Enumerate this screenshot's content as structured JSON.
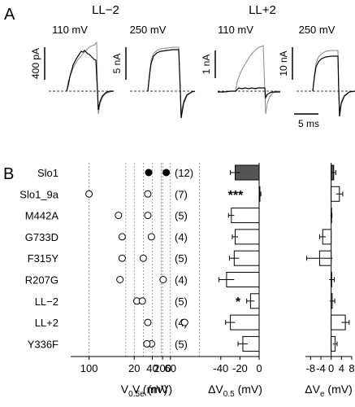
{
  "panel_a": {
    "label": "A",
    "groups": [
      {
        "title": "LL−2",
        "subplots": [
          {
            "voltage": "110 mV",
            "scale": "400 pA"
          },
          {
            "voltage": "250 mV",
            "scale": "5 nA"
          }
        ]
      },
      {
        "title": "LL+2",
        "subplots": [
          {
            "voltage": "110 mV",
            "scale": "1 nA"
          },
          {
            "voltage": "250 mV",
            "scale": "10 nA"
          }
        ]
      }
    ],
    "time_scale": "5 ms"
  },
  "panel_b": {
    "label": "B",
    "rows": [
      "Slo1",
      "Slo1_9a",
      "M442A",
      "G733D",
      "F315Y",
      "R207G",
      "LL−2",
      "LL+2",
      "Y336F"
    ],
    "n_labels": [
      "(12)",
      "(7)",
      "(5)",
      "(4)",
      "(5)",
      "(4)",
      "(5)",
      "(4)",
      "(5)"
    ],
    "annotations": [
      "***",
      "*"
    ]
  },
  "chart_data": [
    {
      "type": "scatter",
      "xlabel": "V0.5 (mV)",
      "xlabel_parts": [
        "V",
        "0.5",
        " (mV)"
      ],
      "xlim": [
        75,
        275
      ],
      "xticks": [
        100,
        200
      ],
      "xtick_labels": [
        "100",
        "200"
      ],
      "grid_x": [
        100,
        150,
        200,
        250
      ],
      "grid": true,
      "categories": [
        "Slo1",
        "Slo1_9a",
        "M442A",
        "G733D",
        "F315Y",
        "R207G",
        "LL−2",
        "LL+2",
        "Y336F"
      ],
      "values": [
        205,
        100,
        140,
        145,
        145,
        142,
        165,
        230,
        185
      ],
      "filled": [
        true,
        false,
        false,
        false,
        false,
        false,
        false,
        false,
        false
      ]
    },
    {
      "type": "scatter",
      "xlabel": "Ve (mV)",
      "xlabel_parts": [
        "V",
        "e",
        " (mV)"
      ],
      "xlim": [
        18,
        62
      ],
      "xticks": [
        20,
        40,
        60
      ],
      "xtick_labels": [
        "20",
        "40",
        "60"
      ],
      "grid_x": [
        20,
        30,
        40,
        50,
        60
      ],
      "grid": true,
      "categories": [
        "Slo1",
        "Slo1_9a",
        "M442A",
        "G733D",
        "F315Y",
        "R207G",
        "LL−2",
        "LL+2",
        "Y336F"
      ],
      "values": [
        36,
        35,
        35,
        39,
        30,
        52,
        29,
        35,
        34
      ],
      "filled": [
        true,
        false,
        false,
        false,
        false,
        false,
        false,
        false,
        false
      ]
    },
    {
      "type": "bar",
      "orientation": "horizontal",
      "xlabel": "ΔV0.5 (mV)",
      "xlabel_parts": [
        "ΔV",
        "0.5",
        " (mV)"
      ],
      "xlim": [
        -50,
        0
      ],
      "xticks": [
        -40,
        -20,
        0
      ],
      "xtick_labels": [
        "-40",
        "-20",
        "0"
      ],
      "categories": [
        "Slo1",
        "Slo1_9a",
        "M442A",
        "G733D",
        "F315Y",
        "R207G",
        "LL−2",
        "LL+2",
        "Y336F"
      ],
      "values": [
        -25,
        0.8,
        -29,
        -25,
        -26,
        -34,
        -9,
        -30,
        -17
      ],
      "errors": [
        5,
        1,
        3,
        3,
        5,
        8,
        4,
        5,
        5
      ],
      "filled": [
        true,
        false,
        false,
        false,
        false,
        false,
        false,
        false,
        false
      ]
    },
    {
      "type": "bar",
      "orientation": "horizontal",
      "xlabel": "ΔVe (mV)",
      "xlabel_parts": [
        "ΔV",
        "e",
        " (mV)"
      ],
      "xlim": [
        -10,
        8
      ],
      "xticks": [
        -8,
        -4,
        0,
        4,
        8
      ],
      "xtick_labels": [
        "-8",
        "-4",
        "0",
        "4",
        "8"
      ],
      "categories": [
        "Slo1",
        "Slo1_9a",
        "M442A",
        "G733D",
        "F315Y",
        "R207G",
        "LL−2",
        "LL+2",
        "Y336F"
      ],
      "values": [
        1.0,
        3.2,
        0.0,
        -3.3,
        -4.5,
        0.2,
        0.4,
        5.5,
        1.5
      ],
      "errors": [
        0.8,
        1.3,
        0.3,
        1.2,
        5.0,
        1.0,
        1.0,
        1.5,
        0.8
      ],
      "filled": [
        true,
        false,
        false,
        false,
        false,
        false,
        false,
        false,
        false
      ]
    }
  ]
}
